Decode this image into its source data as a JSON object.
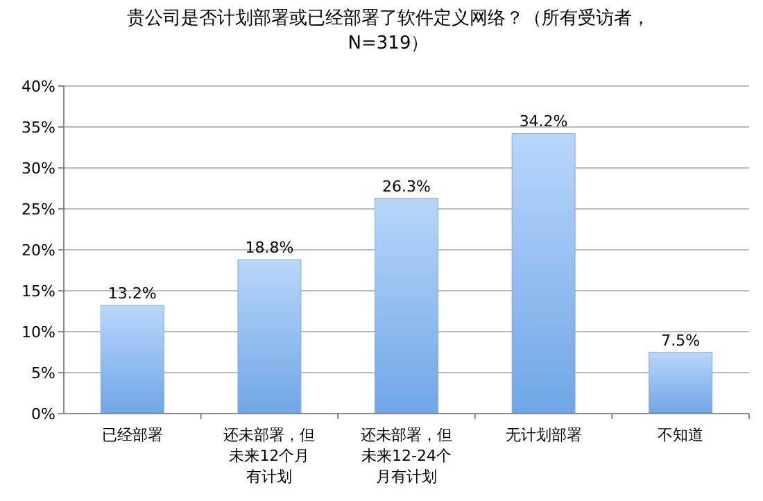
{
  "chart_data": {
    "type": "bar",
    "title": "贵公司是否计划部署或已经部署了软件定义网络？（所有受访者，N=319）",
    "categories": [
      "已经部署",
      "还未部署，但未来12个月有计划",
      "还未部署，但未来12-24个月有计划",
      "无计划部署",
      "不知道"
    ],
    "values": [
      13.2,
      18.8,
      26.3,
      34.2,
      7.5
    ],
    "value_labels": [
      "13.2%",
      "18.8%",
      "26.3%",
      "34.2%",
      "7.5%"
    ],
    "color": "#6fa6e6",
    "ylim": [
      0,
      40
    ],
    "yticks": [
      {
        "value": 0,
        "label": "0%"
      },
      {
        "value": 5,
        "label": "5%"
      },
      {
        "value": 10,
        "label": "10%"
      },
      {
        "value": 15,
        "label": "15%"
      },
      {
        "value": 20,
        "label": "20%"
      },
      {
        "value": 25,
        "label": "25%"
      },
      {
        "value": 30,
        "label": "30%"
      },
      {
        "value": 35,
        "label": "35%"
      },
      {
        "value": 40,
        "label": "40%"
      }
    ],
    "grid": "y"
  }
}
